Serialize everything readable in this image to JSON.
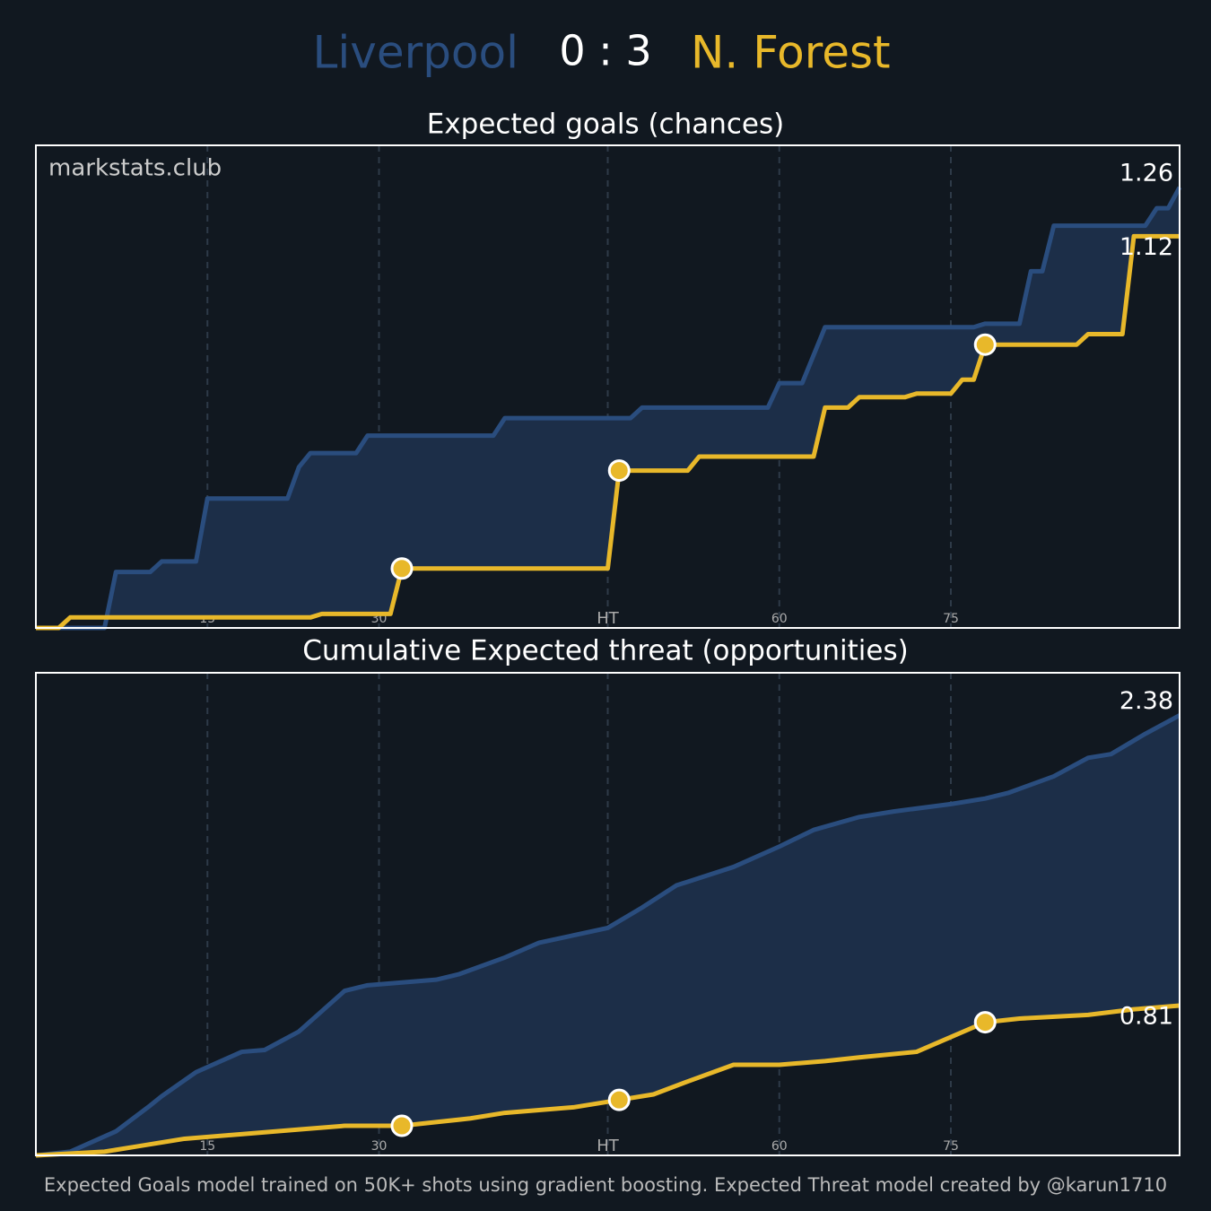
{
  "header": {
    "home": "Liverpool",
    "score": "0 : 3",
    "away": "N. Forest"
  },
  "watermark": "markstats.club",
  "footer": "Expected Goals model trained on 50K+ shots using gradient boosting. Expected Threat model created by @karun1710",
  "chart_data": [
    {
      "type": "line",
      "title": "Expected goals (chances)",
      "xlim": [
        0,
        100
      ],
      "xticks": [
        15,
        30,
        {
          "value": 50,
          "label": "HT"
        },
        {
          "value": 65,
          "label": "60"
        },
        {
          "value": 80,
          "label": "75"
        }
      ],
      "ylim": [
        0,
        1.38
      ],
      "grid": true,
      "series": [
        {
          "color": "#2a4d7e",
          "x": [
            0,
            6,
            7,
            10,
            11,
            14,
            15,
            22,
            23,
            24,
            28,
            29,
            40,
            41,
            44,
            52,
            53,
            64,
            65,
            67,
            69,
            82,
            83,
            86,
            87,
            88,
            89,
            97,
            98,
            99,
            100
          ],
          "values": [
            0,
            0,
            0.16,
            0.16,
            0.19,
            0.19,
            0.37,
            0.37,
            0.46,
            0.5,
            0.5,
            0.55,
            0.55,
            0.6,
            0.6,
            0.6,
            0.63,
            0.63,
            0.7,
            0.7,
            0.86,
            0.86,
            0.87,
            0.87,
            1.02,
            1.02,
            1.15,
            1.15,
            1.2,
            1.2,
            1.26
          ]
        },
        {
          "color": "#e8b82a",
          "x": [
            0,
            2,
            3,
            24,
            25,
            31,
            32,
            50,
            51,
            57,
            58,
            68,
            69,
            71,
            72,
            76,
            77,
            80,
            81,
            82,
            83,
            91,
            92,
            95,
            96,
            100
          ],
          "values": [
            0,
            0,
            0.03,
            0.03,
            0.04,
            0.04,
            0.17,
            0.17,
            0.45,
            0.45,
            0.49,
            0.49,
            0.63,
            0.63,
            0.66,
            0.66,
            0.67,
            0.67,
            0.71,
            0.71,
            0.81,
            0.81,
            0.84,
            0.84,
            1.12,
            1.12
          ],
          "goals": [
            32,
            51,
            83
          ]
        }
      ]
    },
    {
      "type": "line",
      "title": "Cumulative Expected threat (opportunities)",
      "xlim": [
        0,
        100
      ],
      "xticks": [
        15,
        30,
        {
          "value": 50,
          "label": "HT"
        },
        {
          "value": 65,
          "label": "60"
        },
        {
          "value": 80,
          "label": "75"
        }
      ],
      "ylim": [
        0,
        2.61
      ],
      "grid": true,
      "series": [
        {
          "color": "#2a4d7e",
          "x": [
            0,
            3,
            7,
            10,
            11,
            14,
            18,
            20,
            23,
            27,
            29,
            35,
            37,
            41,
            44,
            47,
            50,
            53,
            56,
            61,
            65,
            68,
            72,
            75,
            80,
            83,
            85,
            89,
            92,
            94,
            97,
            100
          ],
          "values": [
            0,
            0.02,
            0.13,
            0.27,
            0.32,
            0.45,
            0.56,
            0.57,
            0.67,
            0.89,
            0.92,
            0.95,
            0.98,
            1.07,
            1.15,
            1.19,
            1.23,
            1.34,
            1.46,
            1.56,
            1.67,
            1.76,
            1.83,
            1.86,
            1.9,
            1.93,
            1.96,
            2.05,
            2.15,
            2.17,
            2.28,
            2.38
          ]
        },
        {
          "color": "#e8b82a",
          "x": [
            0,
            6,
            9,
            13,
            17,
            23,
            27,
            32,
            35,
            38,
            41,
            47,
            51,
            54,
            57,
            61,
            65,
            69,
            72,
            77,
            80,
            83,
            86,
            92,
            96,
            100
          ],
          "values": [
            0,
            0.02,
            0.05,
            0.09,
            0.11,
            0.14,
            0.16,
            0.16,
            0.18,
            0.2,
            0.23,
            0.26,
            0.3,
            0.33,
            0.4,
            0.49,
            0.49,
            0.51,
            0.53,
            0.56,
            0.64,
            0.72,
            0.74,
            0.76,
            0.79,
            0.81
          ],
          "goals": [
            32,
            51,
            83
          ]
        }
      ]
    }
  ]
}
